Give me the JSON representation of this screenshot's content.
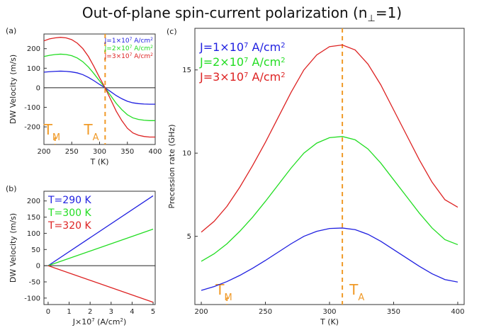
{
  "title": "Out-of-plane spin-current polarization (n",
  "title_sub": "⊥",
  "title_tail": "=1)",
  "colors": {
    "blue": "#1f1fe0",
    "green": "#22dd22",
    "red": "#dd2222",
    "orange": "#f09a28",
    "axis": "#333333"
  },
  "chart_data": [
    {
      "panel": "(a)",
      "type": "line",
      "xlabel": "T (K)",
      "ylabel": "DW Velocity (m/s)",
      "xlim": [
        200,
        400
      ],
      "ylim": [
        -290,
        275
      ],
      "xticks": [
        200,
        250,
        300,
        350,
        400
      ],
      "yticks": [
        -200,
        -100,
        0,
        100,
        200
      ],
      "zero_line": true,
      "legend_position": "top-right",
      "markers": [
        {
          "label": "T",
          "sub": "M",
          "x": 220,
          "style": "dashed-short"
        },
        {
          "label": "T",
          "sub": "A",
          "x": 310,
          "style": "dashed"
        }
      ],
      "x": [
        200,
        210,
        220,
        230,
        240,
        250,
        260,
        270,
        280,
        290,
        300,
        310,
        320,
        330,
        340,
        350,
        360,
        370,
        380,
        390,
        400
      ],
      "series": [
        {
          "name": "J=1×10⁷ A/cm²",
          "color": "blue",
          "values": [
            80,
            82,
            84,
            85,
            84,
            81,
            76,
            67,
            53,
            36,
            17,
            0,
            -20,
            -40,
            -56,
            -69,
            -77,
            -81,
            -83,
            -84,
            -84
          ]
        },
        {
          "name": "J=2×10⁷ A/cm²",
          "color": "green",
          "values": [
            160,
            166,
            170,
            172,
            170,
            164,
            152,
            133,
            106,
            72,
            35,
            0,
            -40,
            -80,
            -112,
            -138,
            -154,
            -162,
            -166,
            -168,
            -168
          ]
        },
        {
          "name": "J=3×10⁷ A/cm²",
          "color": "red",
          "values": [
            240,
            250,
            255,
            258,
            255,
            246,
            228,
            200,
            160,
            108,
            52,
            0,
            -60,
            -120,
            -168,
            -207,
            -231,
            -243,
            -249,
            -252,
            -252
          ]
        }
      ]
    },
    {
      "panel": "(b)",
      "type": "line",
      "xlabel": "J×10⁷ (A/cm²)",
      "ylabel": "DW Velocity (m/s)",
      "xlim": [
        -0.2,
        5.1
      ],
      "ylim": [
        -120,
        230
      ],
      "xticks": [
        0,
        1,
        2,
        3,
        4,
        5
      ],
      "yticks": [
        -100,
        -50,
        0,
        50,
        100,
        150,
        200
      ],
      "zero_line": true,
      "legend_position": "top-left",
      "x": [
        0,
        5
      ],
      "series": [
        {
          "name": "T=290 K",
          "color": "blue",
          "values": [
            0,
            216
          ]
        },
        {
          "name": "T=300 K",
          "color": "green",
          "values": [
            0,
            113
          ]
        },
        {
          "name": "T=320 K",
          "color": "red",
          "values": [
            0,
            -113
          ]
        }
      ]
    },
    {
      "panel": "(c)",
      "type": "line",
      "xlabel": "T (K)",
      "ylabel": "Precession rate (GHz)",
      "xlim": [
        195,
        405
      ],
      "ylim": [
        0.9,
        17.5
      ],
      "xticks": [
        200,
        250,
        300,
        350,
        400
      ],
      "yticks": [
        5,
        10,
        15
      ],
      "legend_position": "top-left",
      "markers": [
        {
          "label": "T",
          "sub": "M",
          "x": 220,
          "style": "dashed-short"
        },
        {
          "label": "T",
          "sub": "A",
          "x": 310,
          "style": "dashed"
        }
      ],
      "x": [
        200,
        210,
        220,
        230,
        240,
        250,
        260,
        270,
        280,
        290,
        300,
        310,
        320,
        330,
        340,
        350,
        360,
        370,
        380,
        390,
        400
      ],
      "series": [
        {
          "name": "J=1×10⁷ A/cm²",
          "color": "blue",
          "values": [
            1.75,
            1.98,
            2.28,
            2.65,
            3.08,
            3.55,
            4.05,
            4.55,
            5.0,
            5.3,
            5.47,
            5.5,
            5.4,
            5.12,
            4.7,
            4.2,
            3.7,
            3.2,
            2.75,
            2.4,
            2.25
          ]
        },
        {
          "name": "J=2×10⁷ A/cm²",
          "color": "green",
          "values": [
            3.5,
            3.95,
            4.55,
            5.3,
            6.15,
            7.1,
            8.1,
            9.1,
            10.0,
            10.6,
            10.93,
            11.0,
            10.8,
            10.25,
            9.4,
            8.4,
            7.4,
            6.4,
            5.5,
            4.8,
            4.5
          ]
        },
        {
          "name": "J=3×10⁷ A/cm²",
          "color": "red",
          "values": [
            5.25,
            5.9,
            6.8,
            7.95,
            9.25,
            10.65,
            12.15,
            13.65,
            15.0,
            15.9,
            16.4,
            16.5,
            16.2,
            15.35,
            14.1,
            12.6,
            11.1,
            9.6,
            8.25,
            7.2,
            6.75
          ]
        }
      ]
    }
  ]
}
